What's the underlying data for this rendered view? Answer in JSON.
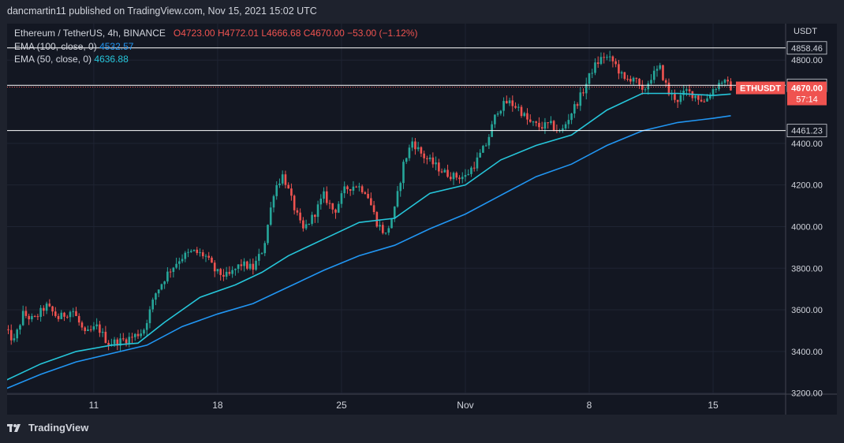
{
  "header": {
    "publish_line": "dancmartin11 published on TradingView.com, Nov 15, 2021 15:02 UTC"
  },
  "legend": {
    "symbol": "Ethereum / TetherUS, 4h, BINANCE",
    "open": "O4723.00",
    "high": "H4772.01",
    "low": "L4666.68",
    "close": "C4670.00",
    "change": "−53.00 (−1.12%)",
    "ema100_label": "EMA (100, close, 0)",
    "ema100_value": "4532.57",
    "ema50_label": "EMA (50, close, 0)",
    "ema50_value": "4636.88"
  },
  "currency_label": "USDT",
  "footer": {
    "brand": "TradingView"
  },
  "colors": {
    "up": "#26a69a",
    "down": "#ef5350",
    "ema100": "#2196f3",
    "ema50": "#26c6da",
    "hline": "#ffffff",
    "bg": "#131722"
  },
  "chart_data": {
    "type": "candlestick",
    "x_ticks": [
      {
        "label": "11",
        "day": 11
      },
      {
        "label": "18",
        "day": 18
      },
      {
        "label": "25",
        "day": 25
      },
      {
        "label": "Nov",
        "day": 32
      },
      {
        "label": "8",
        "day": 39
      },
      {
        "label": "15",
        "day": 46
      }
    ],
    "x_range_days": [
      6.1,
      50.1
    ],
    "y_ticks": [
      3200,
      3400,
      3600,
      3800,
      4000,
      4200,
      4400,
      4800
    ],
    "y_tick_labels": [
      "3200.00",
      "3400.00",
      "3600.00",
      "3800.00",
      "4000.00",
      "4200.00",
      "4400.00",
      "4800.00"
    ],
    "ylim": [
      3195,
      4975
    ],
    "horizontal_levels": [
      {
        "value": 4858.46,
        "label": "4858.46"
      },
      {
        "value": 4678.49,
        "label": "4678.49"
      },
      {
        "value": 4461.23,
        "label": "4461.23"
      }
    ],
    "current_price": {
      "symbol": "ETHUSDT",
      "value": "4670.00",
      "timer": "57:14",
      "price": 4670
    },
    "price_path": [
      [
        6.0,
        3500
      ],
      [
        6.5,
        3450
      ],
      [
        7.0,
        3580
      ],
      [
        7.6,
        3550
      ],
      [
        8.3,
        3620
      ],
      [
        9.0,
        3560
      ],
      [
        9.8,
        3600
      ],
      [
        10.5,
        3480
      ],
      [
        11.2,
        3520
      ],
      [
        11.8,
        3440
      ],
      [
        12.5,
        3450
      ],
      [
        13.2,
        3470
      ],
      [
        13.8,
        3500
      ],
      [
        14.5,
        3680
      ],
      [
        15.2,
        3780
      ],
      [
        15.9,
        3850
      ],
      [
        16.6,
        3880
      ],
      [
        17.3,
        3860
      ],
      [
        17.9,
        3780
      ],
      [
        18.6,
        3760
      ],
      [
        19.3,
        3820
      ],
      [
        20.0,
        3800
      ],
      [
        20.6,
        3900
      ],
      [
        21.2,
        4180
      ],
      [
        21.7,
        4250
      ],
      [
        22.2,
        4120
      ],
      [
        22.8,
        3980
      ],
      [
        23.4,
        4050
      ],
      [
        24.0,
        4150
      ],
      [
        24.6,
        4070
      ],
      [
        25.2,
        4180
      ],
      [
        25.8,
        4200
      ],
      [
        26.4,
        4170
      ],
      [
        27.0,
        4020
      ],
      [
        27.5,
        3960
      ],
      [
        28.0,
        4080
      ],
      [
        28.5,
        4300
      ],
      [
        29.0,
        4410
      ],
      [
        29.6,
        4340
      ],
      [
        30.2,
        4300
      ],
      [
        30.8,
        4260
      ],
      [
        31.4,
        4240
      ],
      [
        32.0,
        4240
      ],
      [
        32.6,
        4310
      ],
      [
        33.2,
        4400
      ],
      [
        33.8,
        4560
      ],
      [
        34.4,
        4600
      ],
      [
        35.0,
        4570
      ],
      [
        35.6,
        4500
      ],
      [
        36.2,
        4480
      ],
      [
        36.8,
        4490
      ],
      [
        37.4,
        4450
      ],
      [
        38.0,
        4550
      ],
      [
        38.6,
        4640
      ],
      [
        39.2,
        4760
      ],
      [
        39.8,
        4820
      ],
      [
        40.4,
        4790
      ],
      [
        41.0,
        4700
      ],
      [
        41.5,
        4720
      ],
      [
        42.0,
        4640
      ],
      [
        42.5,
        4720
      ],
      [
        43.0,
        4760
      ],
      [
        43.5,
        4640
      ],
      [
        44.0,
        4610
      ],
      [
        44.5,
        4650
      ],
      [
        45.0,
        4630
      ],
      [
        45.5,
        4600
      ],
      [
        46.0,
        4660
      ],
      [
        46.5,
        4700
      ],
      [
        47.0,
        4670
      ]
    ],
    "ema50_path": [
      [
        6.0,
        3260
      ],
      [
        8.0,
        3340
      ],
      [
        10.0,
        3400
      ],
      [
        12.0,
        3430
      ],
      [
        13.5,
        3440
      ],
      [
        15.0,
        3540
      ],
      [
        17.0,
        3660
      ],
      [
        19.0,
        3720
      ],
      [
        20.5,
        3780
      ],
      [
        22.0,
        3860
      ],
      [
        24.0,
        3940
      ],
      [
        26.0,
        4020
      ],
      [
        28.0,
        4040
      ],
      [
        30.0,
        4160
      ],
      [
        32.0,
        4200
      ],
      [
        34.0,
        4320
      ],
      [
        36.0,
        4390
      ],
      [
        38.0,
        4440
      ],
      [
        40.0,
        4560
      ],
      [
        42.0,
        4640
      ],
      [
        44.0,
        4640
      ],
      [
        46.0,
        4630
      ],
      [
        47.0,
        4636.88
      ]
    ],
    "ema100_path": [
      [
        6.0,
        3220
      ],
      [
        8.0,
        3290
      ],
      [
        10.0,
        3350
      ],
      [
        12.0,
        3390
      ],
      [
        14.0,
        3430
      ],
      [
        16.0,
        3520
      ],
      [
        18.0,
        3580
      ],
      [
        20.0,
        3630
      ],
      [
        22.0,
        3710
      ],
      [
        24.0,
        3790
      ],
      [
        26.0,
        3860
      ],
      [
        28.0,
        3910
      ],
      [
        30.0,
        3990
      ],
      [
        32.0,
        4060
      ],
      [
        34.0,
        4150
      ],
      [
        36.0,
        4240
      ],
      [
        38.0,
        4300
      ],
      [
        40.0,
        4390
      ],
      [
        42.0,
        4460
      ],
      [
        44.0,
        4500
      ],
      [
        46.0,
        4520
      ],
      [
        47.0,
        4532.57
      ]
    ]
  }
}
